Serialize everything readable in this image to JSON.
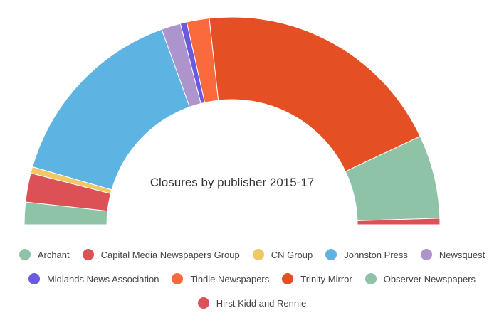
{
  "chart_data": {
    "type": "pie",
    "variant": "half-donut",
    "title": "Closures by publisher 2015-17",
    "categories": [
      "Archant",
      "Capital Media Newspapers Group",
      "CN Group",
      "Johnston Press",
      "Newsquest",
      "Midlands News Association",
      "Tindle Newspapers",
      "Trinity Mirror",
      "Observer Newspapers",
      "Hirst Kidd and Rennie"
    ],
    "values": [
      3.5,
      4.5,
      1.0,
      30.0,
      3.0,
      1.0,
      3.5,
      39.5,
      13.0,
      1.0
    ],
    "colors": [
      "#8fc3a8",
      "#dc5156",
      "#f0c866",
      "#5db4e2",
      "#ae94cc",
      "#6a5ae0",
      "#fb6a3c",
      "#e44f23",
      "#8fc3a8",
      "#dc5156"
    ],
    "legend_placement": "bottom"
  }
}
